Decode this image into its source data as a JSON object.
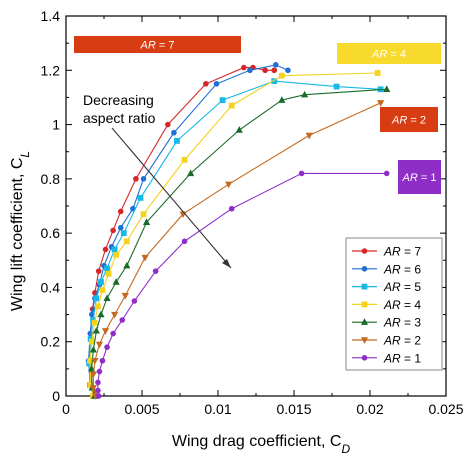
{
  "chart_data": {
    "type": "line",
    "xlabel": "Wing drag coefficient, C",
    "xlabel_sub": "D",
    "ylabel": "Wing lift coefficient, C",
    "ylabel_sub": "L",
    "xlim": [
      0,
      0.025
    ],
    "ylim": [
      0,
      1.4
    ],
    "xticks": [
      0,
      0.005,
      0.01,
      0.015,
      0.02,
      0.025
    ],
    "xtick_labels": [
      "0",
      "0.005",
      "0.01",
      "0.015",
      "0.02",
      "0.025"
    ],
    "yticks": [
      0,
      0.2,
      0.4,
      0.6,
      0.8,
      1.0,
      1.2,
      1.4
    ],
    "ytick_labels": [
      "0",
      "0.2",
      "0.4",
      "0.6",
      "0.8",
      "1",
      "1.2",
      "1.4"
    ],
    "grid": false,
    "legend_position": "bottom-right",
    "annotation": {
      "line1": "Decreasing",
      "line2": "aspect ratio"
    },
    "series": [
      {
        "name": "AR = 7",
        "label_prefix": "AR",
        "label_value": " = 7",
        "color": "#d62728",
        "marker": "circle",
        "box": {
          "text_prefix": "AR",
          "text_value": " = 7",
          "fill": "#d73c12",
          "text_color": "#ffffff"
        },
        "x": [
          0.00205,
          0.00165,
          0.00152,
          0.0016,
          0.00175,
          0.0019,
          0.00215,
          0.0026,
          0.0031,
          0.0036,
          0.0046,
          0.0067,
          0.0092,
          0.0117,
          0.0123,
          0.0131,
          0.0137
        ],
        "y": [
          0,
          0.04,
          0.13,
          0.23,
          0.32,
          0.38,
          0.46,
          0.54,
          0.61,
          0.68,
          0.8,
          1.0,
          1.15,
          1.21,
          1.21,
          1.2,
          1.2
        ]
      },
      {
        "name": "AR = 6",
        "label_prefix": "AR",
        "label_value": " = 6",
        "color": "#1f6fd6",
        "marker": "circle",
        "x": [
          0.00195,
          0.0016,
          0.00148,
          0.0016,
          0.0017,
          0.0019,
          0.0022,
          0.0025,
          0.003,
          0.0036,
          0.0044,
          0.0051,
          0.0071,
          0.0099,
          0.0121,
          0.0138,
          0.0146
        ],
        "y": [
          0,
          0.04,
          0.13,
          0.23,
          0.3,
          0.36,
          0.41,
          0.48,
          0.55,
          0.62,
          0.69,
          0.8,
          0.97,
          1.15,
          1.2,
          1.22,
          1.2
        ]
      },
      {
        "name": "AR = 5",
        "label_prefix": "AR",
        "label_value": " = 5",
        "color": "#17b8e6",
        "marker": "square",
        "x": [
          0.00182,
          0.00158,
          0.00152,
          0.00162,
          0.00178,
          0.002,
          0.0023,
          0.0027,
          0.0032,
          0.0038,
          0.0049,
          0.0073,
          0.0103,
          0.0137,
          0.0178,
          0.0207
        ],
        "y": [
          0,
          0.04,
          0.12,
          0.21,
          0.28,
          0.36,
          0.42,
          0.47,
          0.54,
          0.6,
          0.73,
          0.94,
          1.09,
          1.16,
          1.14,
          1.13
        ]
      },
      {
        "name": "AR = 4",
        "label_prefix": "AR",
        "label_value": " = 4",
        "color": "#f5d21e",
        "marker": "square",
        "box": {
          "text_prefix": "AR",
          "text_value": " = 4",
          "fill": "#f8da2c",
          "text_color": "#ffffff"
        },
        "x": [
          0.00178,
          0.00162,
          0.00158,
          0.0017,
          0.00188,
          0.0021,
          0.0024,
          0.0028,
          0.0033,
          0.004,
          0.0051,
          0.0078,
          0.0109,
          0.0142,
          0.0205
        ],
        "y": [
          0,
          0.04,
          0.13,
          0.2,
          0.27,
          0.33,
          0.39,
          0.45,
          0.52,
          0.57,
          0.67,
          0.87,
          1.07,
          1.18,
          1.19
        ]
      },
      {
        "name": "AR = 3",
        "label_prefix": "AR",
        "label_value": " = 3",
        "color": "#1a6b2a",
        "marker": "triangle-up",
        "x": [
          0.00188,
          0.00172,
          0.00168,
          0.0018,
          0.002,
          0.0023,
          0.0027,
          0.0033,
          0.004,
          0.0053,
          0.0082,
          0.0114,
          0.0142,
          0.0157,
          0.0211
        ],
        "y": [
          0,
          0.03,
          0.1,
          0.17,
          0.24,
          0.3,
          0.36,
          0.42,
          0.48,
          0.64,
          0.82,
          0.98,
          1.09,
          1.11,
          1.13
        ]
      },
      {
        "name": "AR = 2",
        "label_prefix": "AR",
        "label_value": " = 2",
        "color": "#c46a20",
        "marker": "triangle-down",
        "box": {
          "text_prefix": "AR",
          "text_value": " = 2",
          "fill": "#d73c12",
          "text_color": "#ffffff"
        },
        "x": [
          0.00195,
          0.0018,
          0.0018,
          0.0019,
          0.0022,
          0.0026,
          0.0032,
          0.0039,
          0.0052,
          0.0077,
          0.0107,
          0.016,
          0.0207
        ],
        "y": [
          0,
          0.03,
          0.08,
          0.13,
          0.19,
          0.24,
          0.3,
          0.37,
          0.51,
          0.67,
          0.78,
          0.96,
          1.08
        ]
      },
      {
        "name": "AR = 1",
        "label_prefix": "AR",
        "label_value": " = 1",
        "color": "#8e2ec7",
        "marker": "circle",
        "box": {
          "text_prefix": "AR",
          "text_value": " = 1",
          "fill": "#8e2ec7",
          "text_color": "#ffffff"
        },
        "x": [
          0.00215,
          0.0021,
          0.0021,
          0.0022,
          0.0024,
          0.0027,
          0.0031,
          0.0037,
          0.0045,
          0.0059,
          0.0078,
          0.0109,
          0.0155,
          0.0211
        ],
        "y": [
          0,
          0.02,
          0.05,
          0.09,
          0.13,
          0.18,
          0.23,
          0.28,
          0.35,
          0.46,
          0.57,
          0.69,
          0.82,
          0.82
        ]
      }
    ]
  }
}
